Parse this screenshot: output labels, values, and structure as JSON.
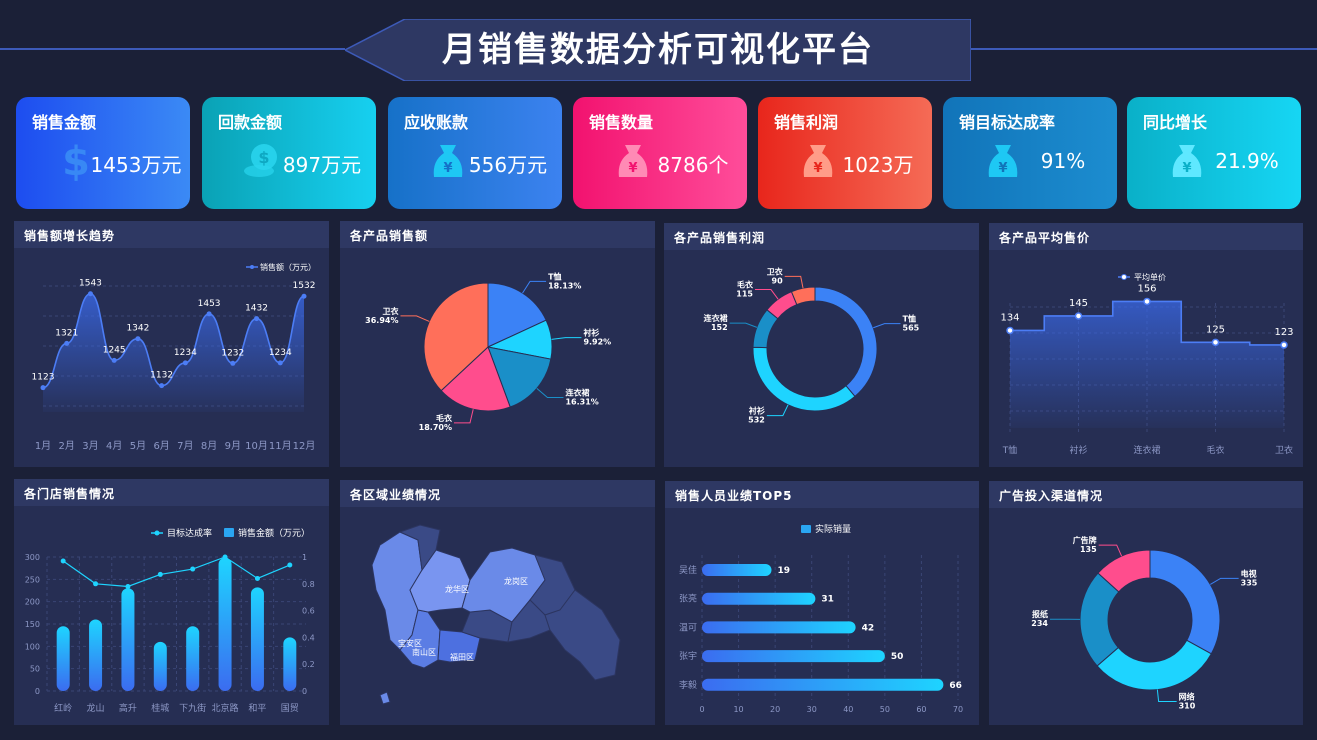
{
  "header": {
    "title": "月销售数据分析可视化平台"
  },
  "kpis": [
    {
      "label": "销售金额",
      "value": "1453万元",
      "icon": "dollar-icon"
    },
    {
      "label": "回款金额",
      "value": "897万元",
      "icon": "coins-icon"
    },
    {
      "label": "应收账款",
      "value": "556万元",
      "icon": "money-bag-icon"
    },
    {
      "label": "销售数量",
      "value": "8786个",
      "icon": "money-bag-icon"
    },
    {
      "label": "销售利润",
      "value": "1023万",
      "icon": "money-bag-icon"
    },
    {
      "label": "销目标达成率",
      "value": "91%",
      "icon": "money-bag-icon"
    },
    {
      "label": "同比增长",
      "value": "21.9%",
      "icon": "money-bag-icon"
    }
  ],
  "colors": {
    "background": "#1b2037",
    "panel": "#262e53",
    "panel_header": "#2e3863",
    "blue": "#3b82f6",
    "cyan": "#1ed4ff",
    "teal": "#1a8fc8",
    "pink": "#ff4d8d",
    "orange": "#ff6f5a"
  },
  "panels": {
    "trend": "销售额增长趋势",
    "product_sales": "各产品销售额",
    "product_profit": "各产品销售利润",
    "avg_price": "各产品平均售价",
    "store_sales": "各门店销售情况",
    "region": "各区域业绩情况",
    "top5": "销售人员业绩TOP5",
    "ads": "广告投入渠道情况"
  },
  "chart_data": [
    {
      "type": "area",
      "title": "销售额增长趋势",
      "categories": [
        "1月",
        "2月",
        "3月",
        "4月",
        "5月",
        "6月",
        "7月",
        "8月",
        "9月",
        "10月",
        "11月",
        "12月"
      ],
      "series": [
        {
          "name": "销售额（万元）",
          "values": [
            1123,
            1321,
            1543,
            1245,
            1342,
            1132,
            1234,
            1453,
            1232,
            1432,
            1234,
            1532
          ]
        }
      ],
      "ylim": [
        1050,
        1600
      ],
      "grid": true,
      "legend": "top-right"
    },
    {
      "type": "pie",
      "title": "各产品销售额",
      "slices": [
        {
          "label": "T恤",
          "value": 18.13,
          "text": "18.13%",
          "color": "#3b82f6"
        },
        {
          "label": "衬衫",
          "value": 9.92,
          "text": "9.92%",
          "color": "#1ed4ff"
        },
        {
          "label": "连衣裙",
          "value": 16.31,
          "text": "16.31%",
          "color": "#1a8fc8"
        },
        {
          "label": "毛衣",
          "value": 18.7,
          "text": "18.70%",
          "color": "#ff4d8d"
        },
        {
          "label": "卫衣",
          "value": 36.94,
          "text": "36.94%",
          "color": "#ff6f5a"
        }
      ]
    },
    {
      "type": "pie",
      "title": "各产品销售利润",
      "slices": [
        {
          "label": "T恤",
          "value": 565,
          "color": "#3b82f6"
        },
        {
          "label": "衬衫",
          "value": 532,
          "color": "#1ed4ff"
        },
        {
          "label": "连衣裙",
          "value": 152,
          "color": "#1a8fc8"
        },
        {
          "label": "毛衣",
          "value": 115,
          "color": "#ff4d8d"
        },
        {
          "label": "卫衣",
          "value": 90,
          "color": "#ff6f5a"
        }
      ]
    },
    {
      "type": "area",
      "title": "各产品平均售价",
      "categories": [
        "T恤",
        "衬衫",
        "连衣裙",
        "毛衣",
        "卫衣"
      ],
      "series": [
        {
          "name": "平均单价",
          "values": [
            134,
            145,
            156,
            125,
            123
          ]
        }
      ],
      "ylim": [
        60,
        170
      ],
      "grid": true,
      "legend": "top"
    },
    {
      "type": "bar",
      "title": "各门店销售情况",
      "categories": [
        "红岭",
        "龙山",
        "高升",
        "桂城",
        "下九街",
        "北京路",
        "和平",
        "国贸"
      ],
      "series": [
        {
          "name": "销售金额（万元）",
          "type": "bar",
          "values": [
            145,
            160,
            230,
            110,
            145,
            298,
            232,
            120
          ]
        },
        {
          "name": "目标达成率",
          "type": "line",
          "values": [
            0.97,
            0.8,
            0.78,
            0.87,
            0.91,
            1.0,
            0.84,
            0.94
          ]
        }
      ],
      "y_ticks": [
        "0",
        "50",
        "100",
        "150",
        "200",
        "250",
        "300"
      ],
      "y2_ticks": [
        "0",
        "0.2",
        "0.4",
        "0.6",
        "0.8",
        "1"
      ],
      "ylim": [
        0,
        300
      ],
      "y2lim": [
        0,
        1
      ],
      "legend": "top-right"
    },
    {
      "type": "map",
      "title": "各区域业绩情况",
      "labels": [
        "龙华区",
        "龙岗区",
        "宝安区",
        "南山区",
        "福田区"
      ]
    },
    {
      "type": "bar",
      "title": "销售人员业绩TOP5",
      "orientation": "horizontal",
      "categories": [
        "吴佳",
        "张亮",
        "温可",
        "张宇",
        "李毅"
      ],
      "series": [
        {
          "name": "实际销量",
          "values": [
            19,
            31,
            42,
            50,
            66
          ]
        }
      ],
      "x_ticks": [
        "0",
        "10",
        "20",
        "30",
        "40",
        "50",
        "60",
        "70"
      ],
      "xlim": [
        0,
        70
      ],
      "legend": "top"
    },
    {
      "type": "pie",
      "title": "广告投入渠道情况",
      "slices": [
        {
          "label": "电视",
          "value": 335,
          "color": "#3b82f6"
        },
        {
          "label": "网络",
          "value": 310,
          "color": "#1ed4ff"
        },
        {
          "label": "报纸",
          "value": 234,
          "color": "#1a8fc8"
        },
        {
          "label": "广告牌",
          "value": 135,
          "color": "#ff4d8d"
        }
      ]
    }
  ]
}
